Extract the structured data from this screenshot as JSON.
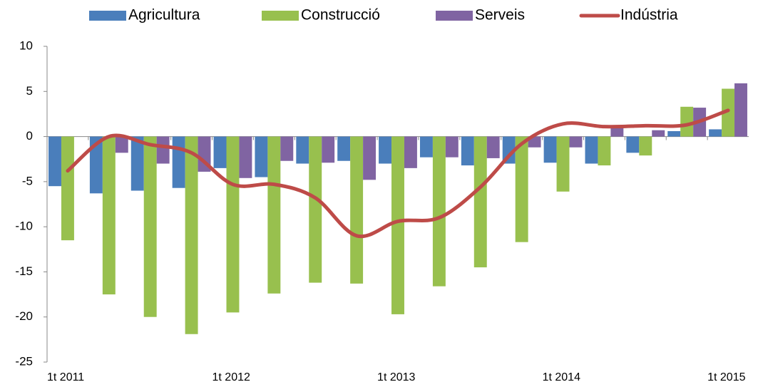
{
  "chart_data": {
    "type": "bar-line",
    "categories": [
      "1t 2011",
      null,
      null,
      null,
      "1t 2012",
      null,
      null,
      null,
      "1t 2013",
      null,
      null,
      null,
      "1t 2014",
      null,
      null,
      null,
      "1t 2015"
    ],
    "series": [
      {
        "name": "Agricultura",
        "type": "bar",
        "color": "#4a7ebb",
        "values": [
          -5.5,
          -6.3,
          -6.0,
          -5.7,
          -3.5,
          -4.5,
          -3.0,
          -2.7,
          -3.0,
          -2.3,
          -3.2,
          -3.0,
          -2.9,
          -3.0,
          -1.8,
          0.6,
          0.8
        ]
      },
      {
        "name": "Construcció",
        "type": "bar",
        "color": "#98c04e",
        "values": [
          -11.5,
          -17.5,
          -20.0,
          -21.9,
          -19.5,
          -17.4,
          -16.2,
          -16.3,
          -19.7,
          -16.6,
          -14.5,
          -11.7,
          -6.1,
          -3.2,
          -2.1,
          3.3,
          5.3
        ]
      },
      {
        "name": "Serveis",
        "type": "bar",
        "color": "#8064a2",
        "values": [
          0.0,
          -1.8,
          -3.0,
          -3.9,
          -4.6,
          -2.7,
          -2.9,
          -4.8,
          -3.5,
          -2.3,
          -2.4,
          -1.2,
          -1.2,
          1.0,
          0.7,
          3.2,
          5.9
        ]
      },
      {
        "name": "Indústria",
        "type": "line",
        "color": "#be4b48",
        "values": [
          -3.8,
          0.0,
          -0.9,
          -1.8,
          -5.3,
          -5.3,
          -6.8,
          -11.0,
          -9.4,
          -9.0,
          -5.6,
          -0.8,
          1.4,
          1.1,
          1.2,
          1.3,
          2.9
        ]
      }
    ],
    "ylim": [
      -25,
      10
    ],
    "yticks": [
      -25,
      -20,
      -15,
      -10,
      -5,
      0,
      5,
      10
    ],
    "legend": "top"
  }
}
